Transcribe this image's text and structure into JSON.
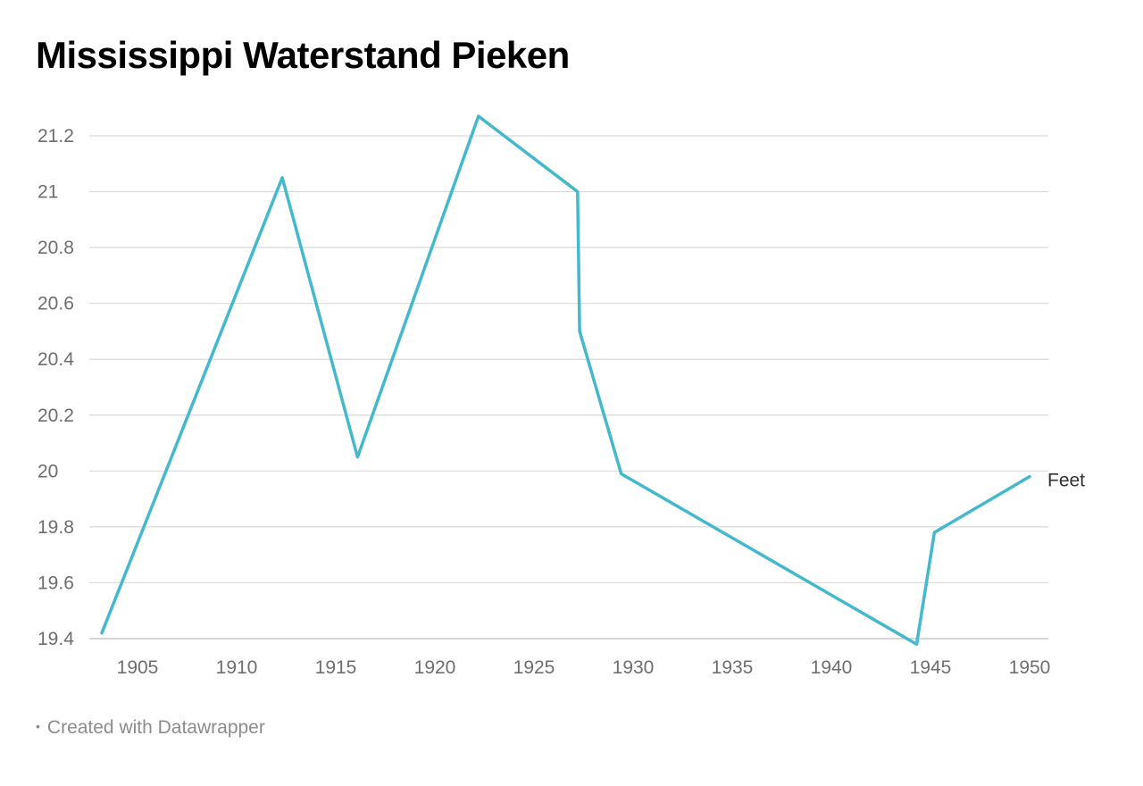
{
  "header": {
    "title": "Mississippi Waterstand Pieken"
  },
  "footer": {
    "credit": "Created with Datawrapper"
  },
  "colors": {
    "line": "#44b8cc",
    "grid": "#d9d9d9",
    "tick_text": "#6e6e6e",
    "series_label": "#333333"
  },
  "chart_data": {
    "type": "line",
    "title": "Mississippi Waterstand Pieken",
    "xlabel": "",
    "ylabel": "",
    "xlim": [
      1902,
      1951
    ],
    "ylim": [
      19.4,
      21.3
    ],
    "x_ticks": [
      "1905",
      "1910",
      "1915",
      "1920",
      "1925",
      "1930",
      "1935",
      "1940",
      "1945",
      "1950"
    ],
    "y_ticks": [
      "19.4",
      "19.6",
      "19.8",
      "20",
      "20.2",
      "20.4",
      "20.6",
      "20.8",
      "21",
      "21.2"
    ],
    "grid": true,
    "series": [
      {
        "name": "Feet",
        "x": [
          1903.2,
          1912.3,
          1916.1,
          1922.2,
          1927.2,
          1927.3,
          1929.4,
          1944.3,
          1945.2,
          1950.0
        ],
        "y": [
          19.42,
          21.05,
          20.05,
          21.27,
          21.0,
          20.5,
          19.99,
          19.38,
          19.78,
          19.98
        ]
      }
    ]
  }
}
